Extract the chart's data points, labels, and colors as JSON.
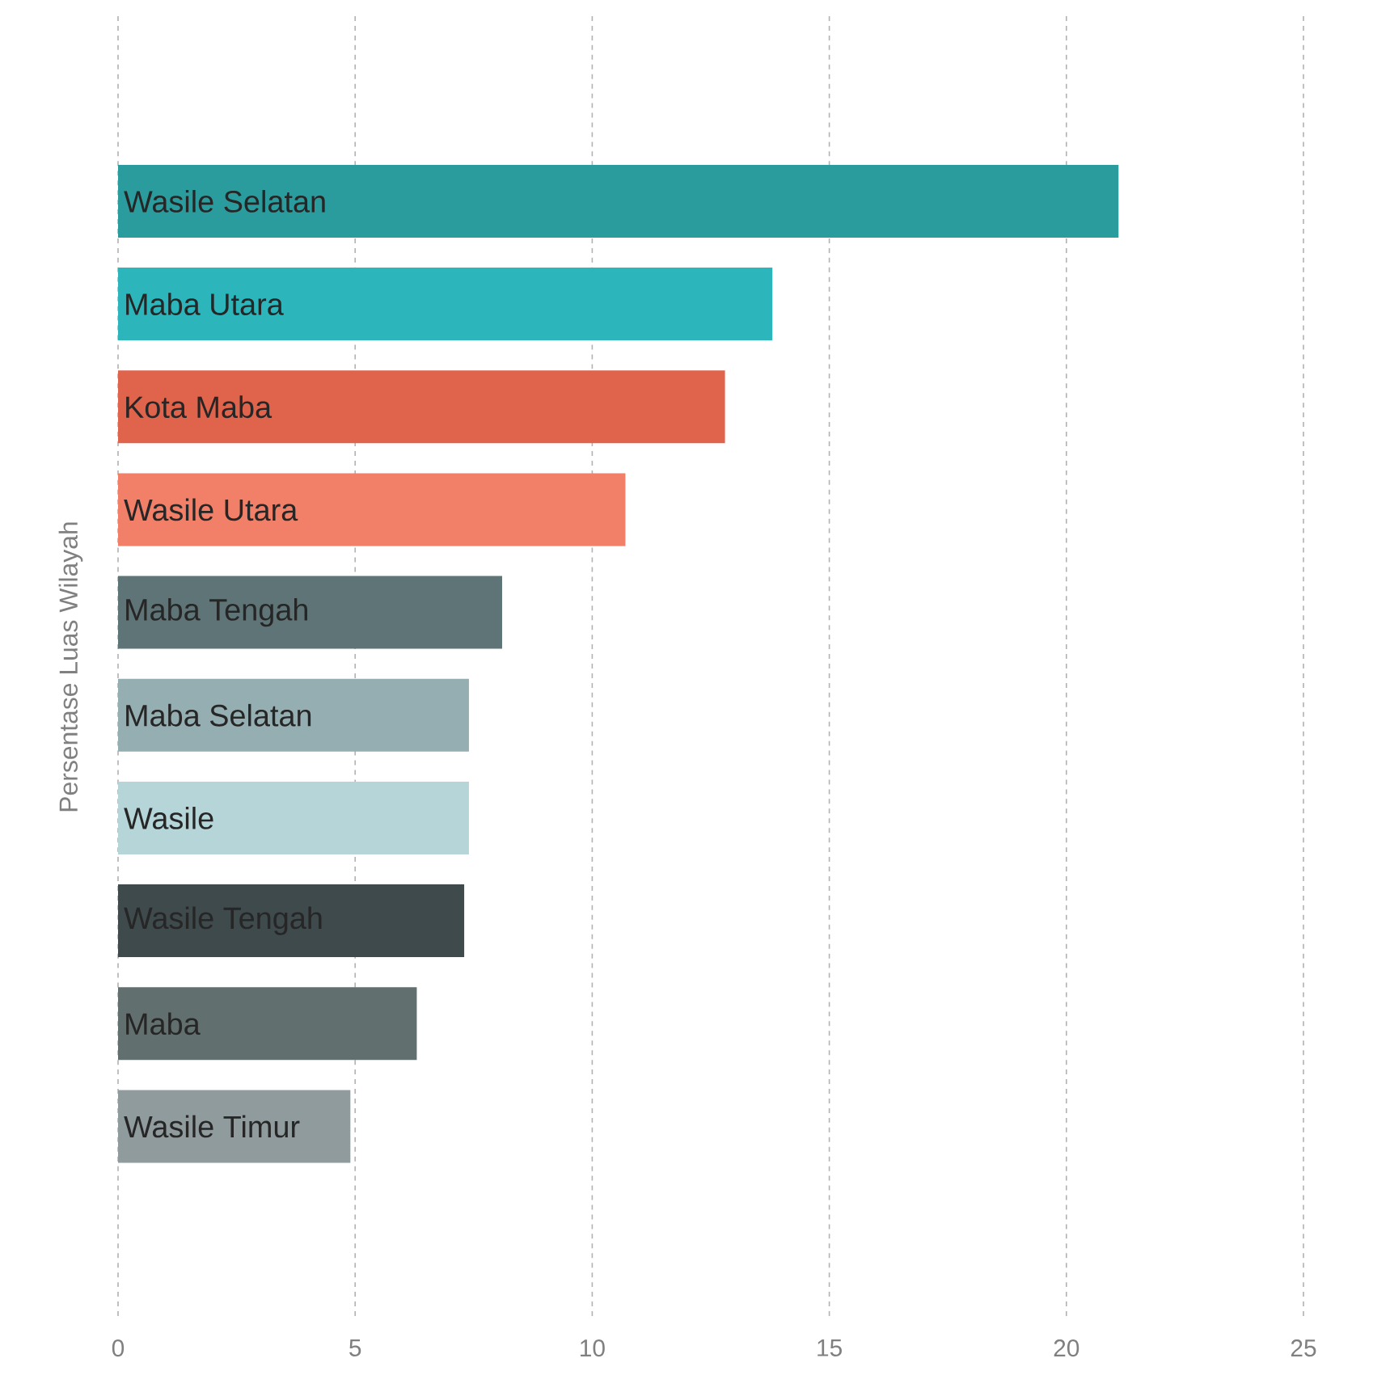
{
  "chart_data": {
    "type": "bar",
    "orientation": "horizontal",
    "ylabel": "Persentase Luas Wilayah",
    "categories": [
      "Wasile Selatan",
      "Maba Utara",
      "Kota Maba",
      "Wasile Utara",
      "Maba Tengah",
      "Maba Selatan",
      "Wasile",
      "Wasile Tengah",
      "Maba",
      "Wasile Timur"
    ],
    "values": [
      21.1,
      13.8,
      12.8,
      10.7,
      8.1,
      7.4,
      7.4,
      7.3,
      6.3,
      4.9
    ],
    "colors": [
      "#2a9c9e",
      "#2cb5bb",
      "#e0634c",
      "#f27f67",
      "#5f7476",
      "#95aeb2",
      "#b6d5d9",
      "#3e4a4c",
      "#626f6f",
      "#8f9b9d"
    ],
    "xlim": [
      0,
      25
    ],
    "xticks": [
      0,
      5,
      10,
      15,
      20,
      25
    ],
    "grid": "x"
  }
}
